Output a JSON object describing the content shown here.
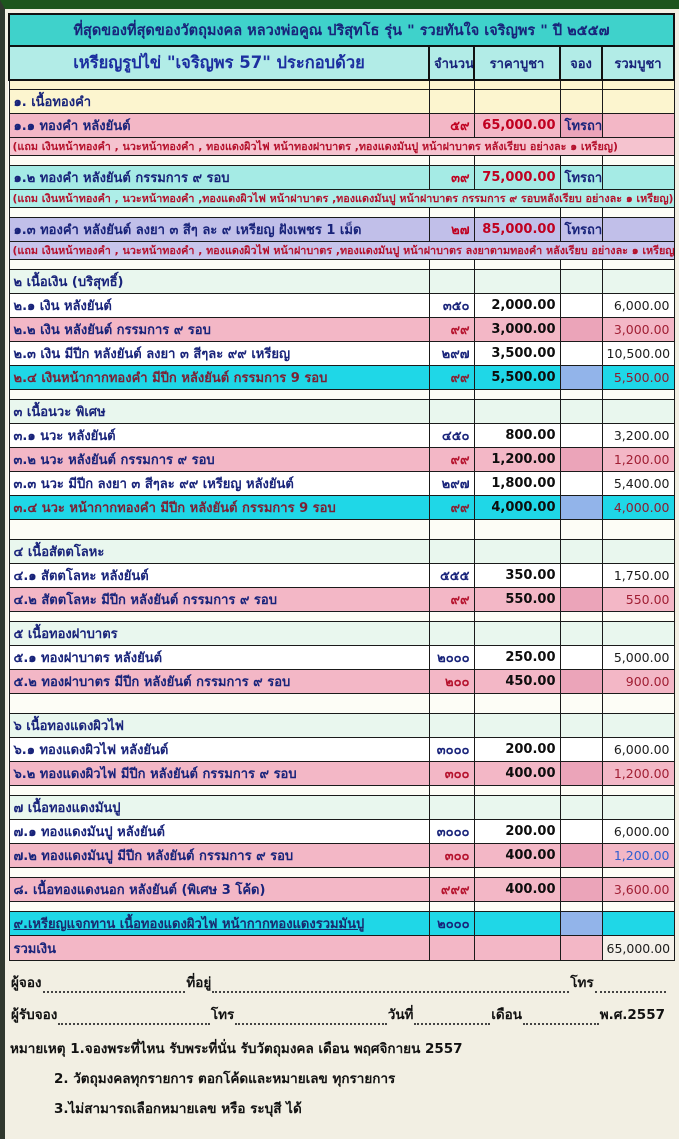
{
  "title": "ที่สุดของที่สุดของวัตถุมงคล หลวงพ่อคูณ ปริสุทโธ  รุ่น \" รวยทันใจ เจริญพร \"  ปี ๒๕๕๗",
  "table": {
    "header": {
      "item": "เหรียญรูปไข่ \"เจริญพร 57\" ประกอบด้วย",
      "qty": "จำนวน",
      "price": "ราคาบูชา",
      "reserve": "จอง",
      "total": "รวมบูชา"
    },
    "rows": [
      {
        "item": "๑. เนื้อทองคำ"
      },
      {
        "item": "๑.๑   ทองคำ หลังยันต์",
        "qty": "๕๙",
        "price": "65,000.00",
        "res": "โทรถาม",
        "total": ""
      },
      {
        "text": "(แถม เงินหน้าทองคำ , นวะหน้าทองคำ , ทองแดงผิวไฟ หน้าทองฝาบาตร ,ทองแดงมันปู หน้าฝาบาตร หลังเรียบ อย่างละ ๑ เหรียญ)"
      },
      {
        "item": "๑.๒  ทองคำ หลังยันต์  กรรมการ ๙ รอบ",
        "qty": "๓๙",
        "price": "75,000.00",
        "res": "โทรถาม",
        "total": ""
      },
      {
        "text": "(แถม เงินหน้าทองคำ , นวะหน้าทองคำ ,ทองแดงผิวไฟ หน้าฝาบาตร ,ทองแดงมันปู หน้าฝาบาตร กรรมการ ๙ รอบหลังเรียบ อย่างละ ๑ เหรียญ)"
      },
      {
        "item": "๑.๓  ทองคำ หลังยันต์ ลงยา ๓ สีๆ ละ ๙ เหรียญ  ฝังเพชร 1 เม็ด",
        "qty": "๒๗",
        "price": "85,000.00",
        "res": "โทรถาม",
        "total": ""
      },
      {
        "text": "(แถม เงินหน้าทองคำ , นวะหน้าทองคำ , ทองแดงผิวไฟ หน้าฝาบาตร ,ทองแดงมันปู หน้าฝาบาตร ลงยาตามทองคำ หลังเรียบ อย่างละ ๑ เหรียญ)"
      },
      {
        "item": "๒ เนื้อเงิน (บริสุทธิ์)"
      },
      {
        "item": "๒.๑  เงิน หลังยันต์",
        "qty": "๓๕๐",
        "price": "2,000.00",
        "res": "",
        "total": "6,000.00"
      },
      {
        "item": "๒.๒   เงิน  หลังยันต์  กรรมการ ๙ รอบ",
        "qty": "๙๙",
        "price": "3,000.00",
        "res": "",
        "total": "3,000.00"
      },
      {
        "item": "๒.๓   เงิน มีปีก  หลังยันต์  ลงยา ๓ สีๆละ ๙๙ เหรียญ",
        "qty": "๒๙๗",
        "price": "3,500.00",
        "res": "",
        "total": "10,500.00"
      },
      {
        "item": "๒.๔  เงินหน้ากากทองคำ มีปีก หลังยันต์ กรรมการ  9 รอบ",
        "qty": "๙๙",
        "price": "5,500.00",
        "res": "",
        "total": "5,500.00"
      },
      {
        "item": "๓ เนื้อนวะ พิเศษ"
      },
      {
        "item": "๓.๑   นวะ หลังยันต์",
        "qty": "๔๕๐",
        "price": "800.00",
        "res": "",
        "total": "3,200.00"
      },
      {
        "item": "๓.๒   นวะ   หลังยันต์ กรรมการ ๙ รอบ",
        "qty": "๙๙",
        "price": "1,200.00",
        "res": "",
        "total": "1,200.00"
      },
      {
        "item": "๓.๓   นวะ มีปีก  ลงยา ๓ สีๆละ ๙๙ เหรียญ  หลังยันต์",
        "qty": "๒๙๗",
        "price": "1,800.00",
        "res": "",
        "total": "5,400.00"
      },
      {
        "item": "๓.๔   นวะ หน้ากากทองคำ  มีปีก  หลังยันต์ กรรมการ 9 รอบ",
        "qty": "๙๙",
        "price": "4,000.00",
        "res": "",
        "total": "4,000.00"
      },
      {
        "item": "๔ เนื้อสัตตโลหะ"
      },
      {
        "item": "๔.๑  สัตตโลหะ หลังยันต์",
        "qty": "๕๕๕",
        "price": "350.00",
        "res": "",
        "total": "1,750.00"
      },
      {
        "item": "๔.๒   สัตตโลหะ มีปีก หลังยันต์ กรรมการ ๙ รอบ",
        "qty": "๙๙",
        "price": "550.00",
        "res": "",
        "total": "550.00"
      },
      {
        "item": "๕ เนื้อทองฝาบาตร"
      },
      {
        "item": "๕.๑  ทองฝาบาตร หลังยันต์",
        "qty": "๒๐๐๐",
        "price": "250.00",
        "res": "",
        "total": "5,000.00"
      },
      {
        "item": "๕.๒  ทองฝาบาตร มีปีก หลังยันต์ กรรมการ ๙ รอบ",
        "qty": "๒๐๐",
        "price": "450.00",
        "res": "",
        "total": "900.00"
      },
      {
        "item": "๖ เนื้อทองแดงผิวไฟ"
      },
      {
        "item": "๖.๑   ทองแดงผิวไฟ หลังยันต์",
        "qty": "๓๐๐๐",
        "price": "200.00",
        "res": "",
        "total": "6,000.00"
      },
      {
        "item": "๖.๒   ทองแดงผิวไฟ มีปีก หลังยันต์ กรรมการ ๙ รอบ",
        "qty": "๓๐๐",
        "price": "400.00",
        "res": "",
        "total": "1,200.00"
      },
      {
        "item": "๗ เนื้อทองแดงมันปู"
      },
      {
        "item": "๗.๑  ทองแดงมันปู หลังยันต์",
        "qty": "๓๐๐๐",
        "price": "200.00",
        "res": "",
        "total": "6,000.00"
      },
      {
        "item": "๗.๒   ทองแดงมันปู มีปีก หลังยันต์ กรรมการ ๙ รอบ",
        "qty": "๓๐๐",
        "price": "400.00",
        "res": "",
        "total": "1,200.00"
      },
      {
        "item": "๘. เนื้อทองแดงนอก  หลังยันต์ (พิเศษ 3 โค้ด)",
        "qty": "๙๙๙",
        "price": "400.00",
        "res": "",
        "total": "3,600.00"
      },
      {
        "item": "๙.เหรียญแจกทาน เนื้อทองแดงผิวไฟ หน้ากากทองแดงรวมมันปู",
        "qty": "๒๐๐๐",
        "price": "",
        "res": "",
        "total": ""
      },
      {
        "item": "รวมเงิน",
        "qty": "",
        "price": "",
        "res": "",
        "total": "65,000.00"
      }
    ]
  },
  "footer": {
    "line1": {
      "l1": "ผู้จอง",
      "l2": "ที่อยู่",
      "l3": "โทร"
    },
    "line2": {
      "l1": "ผู้รับจอง",
      "l2": "โทร",
      "l3": "วันที่",
      "l4": "เดือน",
      "l5": "พ.ศ.2557"
    },
    "notes": [
      "หมายเหตุ 1.จองพระที่ไหน รับพระที่นั่น รับวัตถุมงคล  เดือน พฤศจิกายน 2557",
      "2. วัตถุมงคลทุกรายการ ตอกโค้ดและหมายเลข ทุกรายการ",
      "3.ไม่สามารถเลือกหมายเลข หรือ ระบุสี ได้"
    ]
  },
  "colors": {
    "title_bg": "#3fd2cb",
    "header_bg": "#b2ece7",
    "section_yellow": "#fcf5cf",
    "section_green": "#e9f7ee",
    "row_pink": "#f3b7c6",
    "row_cyan_light": "#a5ebe5",
    "row_lavender": "#c1bfe9",
    "row_cyan_bright": "#1fd7e7",
    "text_navy": "#18237a",
    "text_red": "#b5122d",
    "total_blue": "#2f5fd0",
    "frame_green": "#1d551d"
  }
}
